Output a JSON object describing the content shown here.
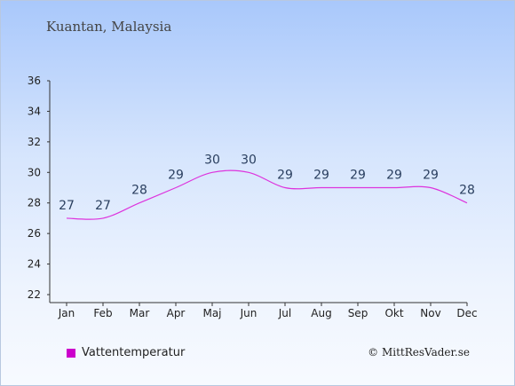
{
  "header": {
    "title": "Kuantan, Malaysia"
  },
  "legend": {
    "label": "Vattentemperatur",
    "color": "#cc00cc"
  },
  "footer": {
    "credit": "© MittResVader.se"
  },
  "colors": {
    "line": "#dd33dd",
    "axis": "#333333",
    "label": "#2a3f5f"
  },
  "chart_data": {
    "type": "line",
    "title": "Kuantan, Malaysia",
    "xlabel": "",
    "ylabel": "",
    "categories": [
      "Jan",
      "Feb",
      "Mar",
      "Apr",
      "Maj",
      "Jun",
      "Jul",
      "Aug",
      "Sep",
      "Okt",
      "Nov",
      "Dec"
    ],
    "series": [
      {
        "name": "Vattentemperatur",
        "values": [
          27,
          27,
          28,
          29,
          30,
          30,
          29,
          29,
          29,
          29,
          29,
          28
        ]
      }
    ],
    "ylim": [
      22,
      36
    ],
    "yticks": [
      22,
      24,
      26,
      28,
      30,
      32,
      34,
      36
    ],
    "grid": false,
    "legend_position": "bottom-left"
  }
}
